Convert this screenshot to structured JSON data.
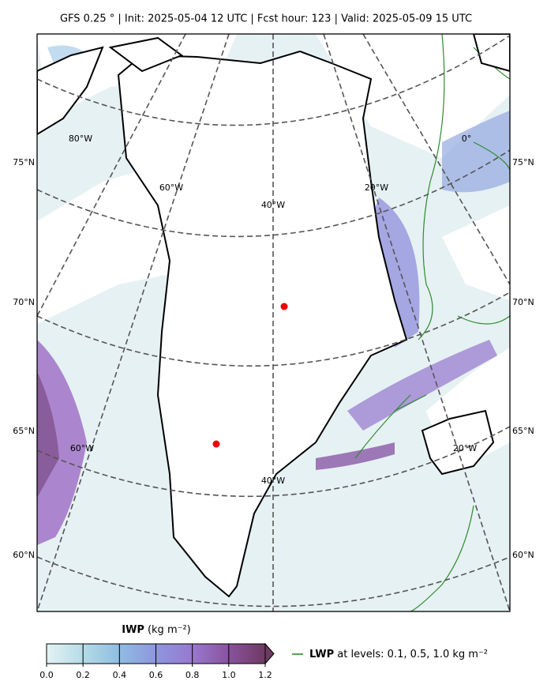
{
  "header": {
    "title": "GFS 0.25 °  |  Init: 2025-05-04 12 UTC  |  Fcst hour: 123  |  Valid: 2025-05-09 15 UTC"
  },
  "map": {
    "lat_labels_left": [
      "75°N",
      "70°N",
      "65°N",
      "60°N"
    ],
    "lat_labels_right": [
      "75°N",
      "70°N",
      "65°N",
      "60°N"
    ],
    "lon_labels_top": [
      "80°W",
      "60°W",
      "40°W",
      "20°W",
      "0°"
    ],
    "lon_labels_bottom": [
      "60°W",
      "40°W",
      "20°W"
    ]
  },
  "colorbar": {
    "label_name": "IWP",
    "label_unit": "(kg m⁻²)",
    "ticks": [
      {
        "value": 0,
        "label": "0.0"
      },
      0.2,
      0.4,
      0.6,
      0.8,
      {
        "value": 1,
        "label": "1.0"
      },
      1.2
    ],
    "lim": [
      0,
      1.2
    ]
  },
  "legend": {
    "name": "LWP",
    "text": " at levels: 0.1, 0.5, 1.0  kg m⁻²",
    "color": "#2e8b2e"
  }
}
